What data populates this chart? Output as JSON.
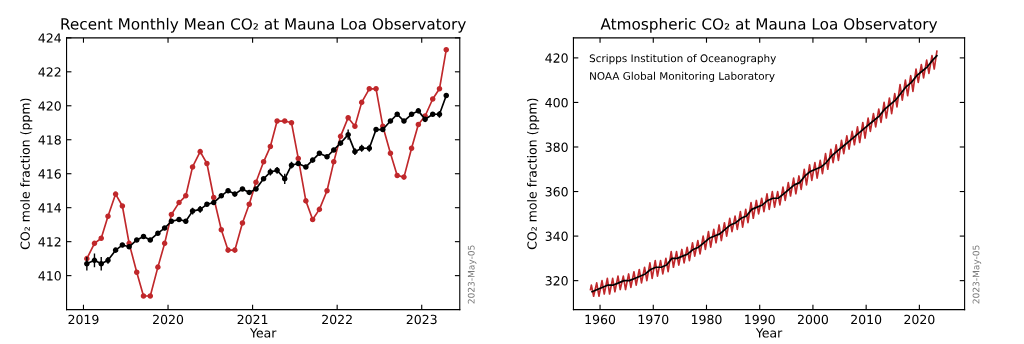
{
  "chart_data": [
    {
      "type": "line",
      "title": "Recent Monthly Mean CO₂ at Mauna Loa Observatory",
      "xlabel": "Year",
      "ylabel": "CO₂ mole fraction (ppm)",
      "xlim": [
        2018.8,
        2023.45
      ],
      "ylim": [
        408,
        424
      ],
      "xticks": [
        2019,
        2020,
        2021,
        2022,
        2023
      ],
      "yticks": [
        410,
        412,
        414,
        416,
        418,
        420,
        422,
        424
      ],
      "grid": false,
      "marker": "circle",
      "line_style": "solid",
      "x": [
        2019.04,
        2019.13,
        2019.21,
        2019.29,
        2019.38,
        2019.46,
        2019.54,
        2019.63,
        2019.71,
        2019.79,
        2019.88,
        2019.96,
        2020.04,
        2020.13,
        2020.21,
        2020.29,
        2020.38,
        2020.46,
        2020.54,
        2020.63,
        2020.71,
        2020.79,
        2020.88,
        2020.96,
        2021.04,
        2021.13,
        2021.21,
        2021.29,
        2021.38,
        2021.46,
        2021.54,
        2021.63,
        2021.71,
        2021.79,
        2021.88,
        2021.96,
        2022.04,
        2022.13,
        2022.21,
        2022.29,
        2022.38,
        2022.46,
        2022.54,
        2022.63,
        2022.71,
        2022.79,
        2022.88,
        2022.96,
        2023.04,
        2023.13,
        2023.21,
        2023.29
      ],
      "series": [
        {
          "color": "#c0282b",
          "values": [
            411.0,
            411.9,
            412.2,
            413.5,
            414.8,
            414.1,
            411.9,
            410.2,
            408.8,
            408.8,
            410.5,
            411.9,
            413.6,
            414.3,
            414.7,
            416.4,
            417.3,
            416.6,
            414.6,
            412.7,
            411.5,
            411.5,
            413.1,
            414.2,
            415.5,
            416.7,
            417.6,
            419.1,
            419.1,
            419.0,
            416.9,
            414.4,
            413.3,
            413.9,
            415.0,
            416.7,
            418.2,
            419.3,
            418.8,
            420.2,
            421.0,
            421.0,
            418.8,
            417.2,
            415.9,
            415.8,
            417.5,
            418.9,
            419.4,
            420.4,
            421.0,
            423.3
          ]
        },
        {
          "color": "#000000",
          "values": [
            410.7,
            410.9,
            410.7,
            410.9,
            411.5,
            411.8,
            411.7,
            412.1,
            412.3,
            412.1,
            412.5,
            412.8,
            413.2,
            413.3,
            413.2,
            413.8,
            413.9,
            414.2,
            414.3,
            414.7,
            415.0,
            414.8,
            415.1,
            414.9,
            415.1,
            415.7,
            416.1,
            416.2,
            415.7,
            416.5,
            416.6,
            416.4,
            416.8,
            417.2,
            417.0,
            417.4,
            417.8,
            418.3,
            417.3,
            417.5,
            417.5,
            418.6,
            418.6,
            419.1,
            419.5,
            419.1,
            419.5,
            419.7,
            419.2,
            419.5,
            419.5,
            420.6
          ],
          "errors": [
            0.4,
            0.4,
            0.4,
            0.2,
            0.1,
            0.1,
            0.1,
            0.1,
            0.1,
            0.1,
            0.1,
            0.1,
            0.1,
            0.1,
            0.1,
            0.2,
            0.2,
            0.1,
            0.1,
            0.1,
            0.1,
            0.1,
            0.1,
            0.1,
            0.1,
            0.1,
            0.2,
            0.2,
            0.3,
            0.2,
            0.1,
            0.1,
            0.1,
            0.1,
            0.1,
            0.1,
            0.1,
            0.3,
            0.2,
            0.2,
            0.2,
            0.1,
            0.1,
            0.1,
            0.1,
            0.1,
            0.1,
            0.1,
            0.1,
            0.1,
            0.2,
            0.1
          ]
        }
      ],
      "annotations": [
        "2023-May-05"
      ]
    },
    {
      "type": "line",
      "title": "Atmospheric CO₂ at Mauna Loa Observatory",
      "xlabel": "Year",
      "ylabel": "CO₂ mole fraction (ppm)",
      "xlim": [
        1955,
        2028.5
      ],
      "ylim": [
        307,
        429
      ],
      "xticks": [
        1960,
        1970,
        1980,
        1990,
        2000,
        2010,
        2020
      ],
      "yticks": [
        320,
        340,
        360,
        380,
        400,
        420
      ],
      "grid": false,
      "marker": "none",
      "line_style": "solid",
      "series": [
        {
          "color": "#c0282b",
          "x": [
            1958.2,
            1958.37,
            1958.79,
            1959.37,
            1959.79,
            1960.37,
            1960.79,
            1961.37,
            1961.79,
            1962.37,
            1962.79,
            1963.37,
            1963.79,
            1964.37,
            1964.79,
            1965.37,
            1965.79,
            1966.37,
            1966.79,
            1967.37,
            1967.79,
            1968.37,
            1968.79,
            1969.37,
            1969.79,
            1970.37,
            1970.79,
            1971.37,
            1971.79,
            1972.37,
            1972.79,
            1973.37,
            1973.79,
            1974.37,
            1974.79,
            1975.37,
            1975.79,
            1976.37,
            1976.79,
            1977.37,
            1977.79,
            1978.37,
            1978.79,
            1979.37,
            1979.79,
            1980.37,
            1980.79,
            1981.37,
            1981.79,
            1982.37,
            1982.79,
            1983.37,
            1983.79,
            1984.37,
            1984.79,
            1985.37,
            1985.79,
            1986.37,
            1986.79,
            1987.37,
            1987.79,
            1988.37,
            1988.79,
            1989.37,
            1989.79,
            1990.37,
            1990.79,
            1991.37,
            1991.79,
            1992.37,
            1992.79,
            1993.37,
            1993.79,
            1994.37,
            1994.79,
            1995.37,
            1995.79,
            1996.37,
            1996.79,
            1997.37,
            1997.79,
            1998.37,
            1998.79,
            1999.37,
            1999.79,
            2000.37,
            2000.79,
            2001.37,
            2001.79,
            2002.37,
            2002.79,
            2003.37,
            2003.79,
            2004.37,
            2004.79,
            2005.37,
            2005.79,
            2006.37,
            2006.79,
            2007.37,
            2007.79,
            2008.37,
            2008.79,
            2009.37,
            2009.79,
            2010.37,
            2010.79,
            2011.37,
            2011.79,
            2012.37,
            2012.79,
            2013.37,
            2013.79,
            2014.37,
            2014.79,
            2015.37,
            2015.79,
            2016.37,
            2016.79,
            2017.37,
            2017.79,
            2018.37,
            2018.79,
            2019.37,
            2019.79,
            2020.37,
            2020.79,
            2021.37,
            2021.79,
            2022.37,
            2022.79,
            2023.29
          ],
          "values": [
            316,
            318,
            313,
            319,
            313,
            320,
            314,
            321,
            314,
            321,
            315,
            322,
            316,
            322,
            316,
            323,
            317,
            324,
            318,
            325,
            319,
            326,
            320,
            328,
            321,
            329,
            322,
            329,
            323,
            330,
            324,
            333,
            326,
            333,
            327,
            334,
            328,
            335,
            329,
            337,
            331,
            338,
            332,
            340,
            334,
            342,
            335,
            343,
            337,
            345,
            338,
            346,
            340,
            348,
            342,
            349,
            343,
            351,
            344,
            352,
            346,
            355,
            348,
            356,
            350,
            357,
            351,
            359,
            352,
            360,
            353,
            360,
            354,
            362,
            356,
            364,
            358,
            366,
            359,
            367,
            361,
            370,
            363,
            372,
            365,
            373,
            366,
            374,
            368,
            377,
            370,
            379,
            373,
            381,
            374,
            383,
            377,
            385,
            379,
            387,
            381,
            389,
            382,
            391,
            384,
            393,
            387,
            395,
            389,
            397,
            391,
            400,
            393,
            402,
            395,
            404,
            398,
            408,
            401,
            410,
            403,
            412,
            405,
            415,
            409,
            417,
            411,
            419,
            413,
            421,
            415,
            423
          ]
        },
        {
          "color": "#000000",
          "x": [
            1958.5,
            1959.5,
            1960.5,
            1961.5,
            1962.5,
            1963.5,
            1964.5,
            1965.5,
            1966.5,
            1967.5,
            1968.5,
            1969.5,
            1970.5,
            1971.5,
            1972.5,
            1973.5,
            1974.5,
            1975.5,
            1976.5,
            1977.5,
            1978.5,
            1979.5,
            1980.5,
            1981.5,
            1982.5,
            1983.5,
            1984.5,
            1985.5,
            1986.5,
            1987.5,
            1988.5,
            1989.5,
            1990.5,
            1991.5,
            1992.5,
            1993.5,
            1994.5,
            1995.5,
            1996.5,
            1997.5,
            1998.5,
            1999.5,
            2000.5,
            2001.5,
            2002.5,
            2003.5,
            2004.5,
            2005.5,
            2006.5,
            2007.5,
            2008.5,
            2009.5,
            2010.5,
            2011.5,
            2012.5,
            2013.5,
            2014.5,
            2015.5,
            2016.5,
            2017.5,
            2018.5,
            2019.5,
            2020.5,
            2021.5,
            2022.5,
            2023.29
          ],
          "values": [
            315,
            316,
            317,
            318,
            318,
            319,
            320,
            320,
            321,
            322,
            323,
            325,
            326,
            326,
            327,
            330,
            330,
            331,
            332,
            334,
            335,
            337,
            339,
            340,
            341,
            343,
            345,
            346,
            348,
            349,
            352,
            353,
            354,
            356,
            357,
            357,
            359,
            361,
            363,
            364,
            367,
            369,
            370,
            371,
            373,
            376,
            378,
            380,
            382,
            384,
            386,
            388,
            390,
            392,
            394,
            397,
            399,
            401,
            404,
            407,
            409,
            412,
            414,
            416,
            419,
            421
          ]
        }
      ],
      "annotations": [
        "Scripps Institution of Oceanography",
        "NOAA Global Monitoring Laboratory",
        "2023-May-05"
      ]
    }
  ]
}
